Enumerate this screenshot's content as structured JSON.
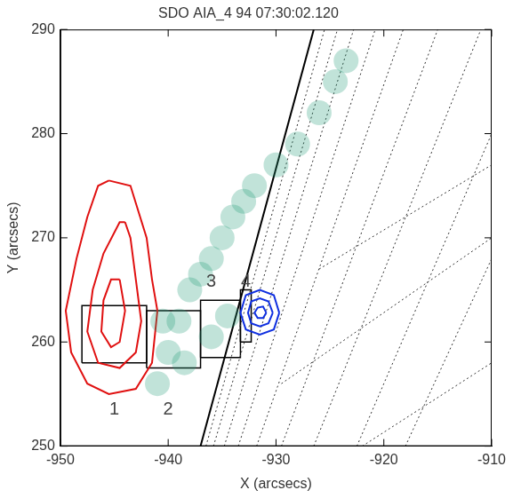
{
  "chart_data": {
    "type": "scatter",
    "title": "SDO AIA_4 94 07:30:02.120",
    "x_label": "X (arcsecs)",
    "y_label": "Y (arcsecs)",
    "xlim": [
      -950,
      -910
    ],
    "xticks": [
      -950,
      -940,
      -930,
      -920,
      -910
    ],
    "ylim": [
      250,
      290
    ],
    "yticks": [
      250,
      260,
      270,
      280,
      290
    ],
    "grid": false,
    "series": [
      {
        "type": "scatter",
        "marker": "circle",
        "color": "#1f9a78",
        "x": [
          -941,
          -940,
          -939,
          -938,
          -937,
          -936,
          -935,
          -934,
          -933,
          -932,
          -930,
          -928,
          -926,
          -924.5,
          -923.5,
          -940.5,
          -938.5,
          -936,
          -934.5
        ],
        "values": [
          256,
          259,
          262,
          265,
          266.5,
          268,
          270,
          272,
          273.5,
          275,
          277,
          279,
          282,
          285,
          287,
          262,
          258,
          260.5,
          262.5
        ]
      },
      {
        "type": "line",
        "line_style": "solid",
        "color": "#e01010",
        "x": [
          -945.5,
          -943.5,
          -942,
          -941.5,
          -941,
          -941.5,
          -943,
          -945.5,
          -947.5,
          -949,
          -949.5,
          -948.5,
          -947.5,
          -946.5,
          -945.5
        ],
        "values": [
          275.5,
          275,
          270,
          266,
          263,
          258,
          255.5,
          255,
          256,
          259,
          263,
          268,
          272,
          275,
          275.5
        ]
      },
      {
        "type": "line",
        "line_style": "solid",
        "color": "#e01010",
        "x": [
          -944,
          -943.5,
          -943,
          -942.5,
          -943,
          -944.5,
          -946.5,
          -947.5,
          -947,
          -946,
          -944.5,
          -944
        ],
        "values": [
          271.5,
          270,
          266,
          262,
          259,
          257.5,
          258,
          261,
          265,
          268.5,
          271.5,
          271.5
        ]
      },
      {
        "type": "line",
        "line_style": "solid",
        "color": "#e01010",
        "x": [
          -944.5,
          -944,
          -944.5,
          -945.3,
          -946.2,
          -946,
          -945.3,
          -944.5
        ],
        "values": [
          266,
          263,
          260,
          259.5,
          261,
          264,
          266,
          266
        ]
      },
      {
        "type": "line",
        "line_style": "solid",
        "color": "#1030e0",
        "x": [
          -929.7,
          -930.2,
          -931.5,
          -932.8,
          -933.3,
          -932.8,
          -931.5,
          -930.2,
          -929.7
        ],
        "values": [
          262.8,
          264.5,
          265,
          264.5,
          262.8,
          261.2,
          260.7,
          261.2,
          262.8
        ]
      },
      {
        "type": "line",
        "line_style": "solid",
        "color": "#1030e0",
        "x": [
          -930.3,
          -930.7,
          -931.5,
          -932.3,
          -932.6,
          -932.3,
          -931.5,
          -930.7,
          -930.3
        ],
        "values": [
          262.8,
          263.9,
          264.2,
          263.9,
          262.8,
          261.8,
          261.5,
          261.8,
          262.8
        ]
      },
      {
        "type": "line",
        "line_style": "solid",
        "color": "#1030e0",
        "x": [
          -930.9,
          -931.2,
          -931.7,
          -932,
          -931.7,
          -931.2,
          -930.9
        ],
        "values": [
          262.8,
          263.4,
          263.3,
          262.8,
          262.3,
          262.3,
          262.8
        ]
      },
      {
        "type": "line",
        "line_style": "solid",
        "color": "#000000",
        "x": [
          -937,
          -926.5
        ],
        "values": [
          250,
          290
        ]
      },
      {
        "type": "line",
        "line_style": "dotted",
        "color": "#333333",
        "x": [
          -936.5,
          -925.5
        ],
        "values": [
          250,
          290
        ]
      },
      {
        "type": "line",
        "line_style": "dotted",
        "color": "#333333",
        "x": [
          -935.8,
          -924.3
        ],
        "values": [
          250,
          290
        ]
      },
      {
        "type": "line",
        "line_style": "dotted",
        "color": "#333333",
        "x": [
          -934.8,
          -922.8
        ],
        "values": [
          250,
          290
        ]
      },
      {
        "type": "line",
        "line_style": "dotted",
        "color": "#333333",
        "x": [
          -933.5,
          -920.8
        ],
        "values": [
          250,
          290
        ]
      },
      {
        "type": "line",
        "line_style": "dotted",
        "color": "#333333",
        "x": [
          -931.8,
          -918.2
        ],
        "values": [
          250,
          290
        ]
      },
      {
        "type": "line",
        "line_style": "dotted",
        "color": "#333333",
        "x": [
          -929.5,
          -915
        ],
        "values": [
          250,
          290
        ]
      },
      {
        "type": "line",
        "line_style": "dotted",
        "color": "#333333",
        "x": [
          -926.5,
          -911
        ],
        "values": [
          250,
          290
        ]
      },
      {
        "type": "line",
        "line_style": "dotted",
        "color": "#333333",
        "x": [
          -922.5,
          -910
        ],
        "values": [
          250,
          280
        ]
      },
      {
        "type": "line",
        "line_style": "dotted",
        "color": "#333333",
        "x": [
          -918,
          -910
        ],
        "values": [
          250,
          268
        ]
      },
      {
        "type": "line",
        "line_style": "dotted",
        "color": "#333333",
        "x": [
          -926,
          -910
        ],
        "values": [
          267,
          277
        ]
      },
      {
        "type": "line",
        "line_style": "dotted",
        "color": "#333333",
        "x": [
          -929.5,
          -910
        ],
        "values": [
          256,
          270
        ]
      },
      {
        "type": "line",
        "line_style": "dotted",
        "color": "#333333",
        "x": [
          -922,
          -910
        ],
        "values": [
          250,
          258
        ]
      }
    ],
    "boxes": [
      {
        "label": "1",
        "x": [
          -948,
          -942
        ],
        "y": [
          258,
          263.5
        ],
        "label_at": [
          -945,
          253.5
        ]
      },
      {
        "label": "2",
        "x": [
          -942,
          -937
        ],
        "y": [
          257.5,
          263
        ],
        "label_at": [
          -940,
          253.5
        ]
      },
      {
        "label": "3",
        "x": [
          -937,
          -933.3
        ],
        "y": [
          258.5,
          264
        ],
        "label_at": [
          -936,
          265.8
        ]
      },
      {
        "label": "4",
        "x": [
          -933.3,
          -932.3
        ],
        "y": [
          260,
          265
        ],
        "label_at": [
          -932.8,
          265.8
        ]
      }
    ]
  }
}
